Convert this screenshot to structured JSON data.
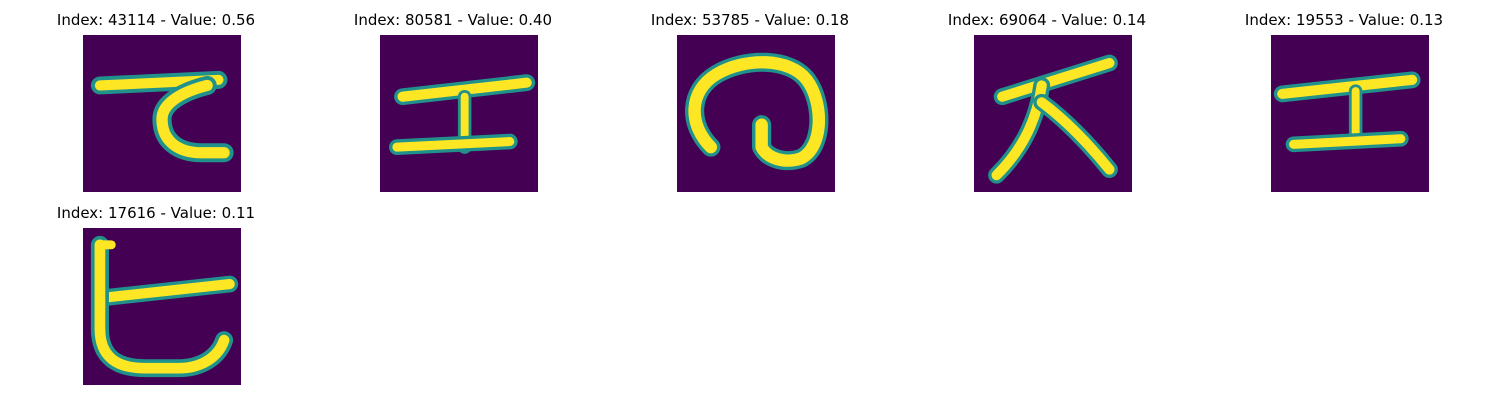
{
  "figure": {
    "background": "#ffffff",
    "colormap": {
      "name": "viridis",
      "low": "#440154",
      "mid": "#21918c",
      "high": "#fde725"
    },
    "panels": [
      {
        "title": "Index: 43114 - Value: 0.56",
        "index": 43114,
        "value": 0.56,
        "glyph": "kana-te-like"
      },
      {
        "title": "Index: 80581 - Value: 0.40",
        "index": 80581,
        "value": 0.4,
        "glyph": "kana-e-like"
      },
      {
        "title": "Index: 53785 - Value: 0.18",
        "index": 53785,
        "value": 0.18,
        "glyph": "kana-no-like"
      },
      {
        "title": "Index: 69064 - Value: 0.14",
        "index": 69064,
        "value": 0.14,
        "glyph": "kanji-dai-like"
      },
      {
        "title": "Index: 19553 - Value: 0.13",
        "index": 19553,
        "value": 0.13,
        "glyph": "kana-e-like"
      },
      {
        "title": "Index: 17616 - Value: 0.11",
        "index": 17616,
        "value": 0.11,
        "glyph": "kana-se-like"
      }
    ]
  }
}
